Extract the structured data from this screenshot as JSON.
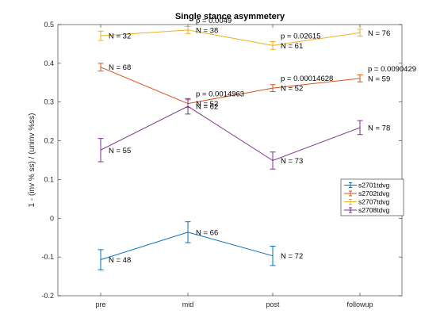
{
  "chart_data": {
    "type": "line",
    "title": "Single stance asymmetery",
    "xlabel": "",
    "ylabel": "1 - (inv % ss) / (uninv %ss)",
    "categories": [
      "pre",
      "mid",
      "post",
      "followup"
    ],
    "ylim": [
      -0.2,
      0.5
    ],
    "yticks": [
      -0.2,
      -0.1,
      0,
      0.1,
      0.2,
      0.3,
      0.4,
      0.5
    ],
    "ytick_labels": [
      "-0.2",
      "-0.1",
      "0",
      "0.1",
      "0.2",
      "0.3",
      "0.4",
      "0.5"
    ],
    "grid": false,
    "legend_position": "right",
    "series": [
      {
        "name": "s2701tdvg",
        "color": "#0072BD",
        "values": [
          -0.107,
          -0.036,
          -0.097,
          null
        ],
        "errors": [
          0.026,
          0.027,
          0.025,
          null
        ],
        "n_labels": [
          "N = 48",
          "N = 66",
          "N = 72",
          null
        ],
        "p_labels": [
          null,
          null,
          null,
          null
        ]
      },
      {
        "name": "s2702tdvg",
        "color": "#D95319",
        "values": [
          0.39,
          0.296,
          0.336,
          0.361
        ],
        "errors": [
          0.01,
          0.01,
          0.009,
          0.009
        ],
        "n_labels": [
          "N = 68",
          "N = 52",
          "N = 52",
          "N = 59"
        ],
        "p_labels": [
          null,
          "p = 0.0014963",
          "p = 0.00014628",
          "p = 0.0090429"
        ]
      },
      {
        "name": "s2707tdvg",
        "color": "#EDB120",
        "values": [
          0.471,
          0.486,
          0.446,
          0.479
        ],
        "errors": [
          0.012,
          0.009,
          0.01,
          0.009
        ],
        "n_labels": [
          "N = 32",
          "N = 38",
          "N = 61",
          "N = 76"
        ],
        "p_labels": [
          null,
          "p = 0.0049",
          "p = 0.02615",
          null
        ]
      },
      {
        "name": "s2708tdvg",
        "color": "#7E2F8E",
        "values": [
          0.176,
          0.289,
          0.149,
          0.234
        ],
        "errors": [
          0.03,
          0.02,
          0.022,
          0.018
        ],
        "n_labels": [
          "N = 55",
          "N = 62",
          "N = 73",
          "N = 78"
        ],
        "p_labels": [
          null,
          null,
          null,
          null
        ]
      }
    ]
  }
}
